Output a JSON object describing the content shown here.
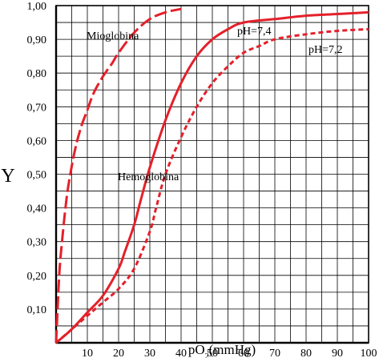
{
  "chart_data": {
    "type": "line",
    "title": "",
    "xlabel": "pO₂(mmHg)",
    "ylabel": "Y",
    "xlim": [
      0,
      100
    ],
    "ylim": [
      0,
      1
    ],
    "x_ticks": [
      "10",
      "20",
      "30",
      "40",
      "50",
      "60",
      "70",
      "80",
      "90",
      "100"
    ],
    "y_ticks": [
      "0,10",
      "0,20",
      "0,30",
      "0,40",
      "0,50",
      "0,60",
      "0,70",
      "0,80",
      "0,90",
      "1,00"
    ],
    "grid": true,
    "colors": {
      "curve": "#e4202a",
      "grid": "#000000"
    },
    "series": [
      {
        "name": "Mioglobina",
        "style": "dashed",
        "x": [
          0,
          1,
          2,
          3,
          4,
          6,
          8,
          10,
          12,
          15,
          18,
          20,
          25,
          30,
          35,
          40
        ],
        "y": [
          0.0,
          0.2,
          0.31,
          0.4,
          0.47,
          0.57,
          0.64,
          0.69,
          0.74,
          0.79,
          0.83,
          0.86,
          0.92,
          0.96,
          0.98,
          0.99
        ]
      },
      {
        "name": "pH=7,4",
        "style": "solid",
        "x": [
          0,
          5,
          10,
          15,
          20,
          22,
          25,
          27,
          30,
          35,
          40,
          45,
          50,
          55,
          60,
          70,
          80,
          90,
          100
        ],
        "y": [
          0.0,
          0.04,
          0.09,
          0.14,
          0.22,
          0.27,
          0.35,
          0.42,
          0.52,
          0.66,
          0.77,
          0.85,
          0.9,
          0.93,
          0.95,
          0.96,
          0.97,
          0.975,
          0.98
        ]
      },
      {
        "name": "pH=7,2",
        "style": "dotted",
        "x": [
          0,
          5,
          10,
          15,
          20,
          25,
          30,
          32,
          35,
          40,
          45,
          50,
          55,
          60,
          65,
          70,
          80,
          90,
          100
        ],
        "y": [
          0.0,
          0.04,
          0.08,
          0.12,
          0.16,
          0.22,
          0.33,
          0.4,
          0.5,
          0.61,
          0.7,
          0.77,
          0.82,
          0.86,
          0.88,
          0.9,
          0.915,
          0.925,
          0.93
        ]
      }
    ],
    "annotations": [
      "Mioglobina",
      "Hemoglobina",
      "pH=7,4",
      "pH=7,2"
    ]
  }
}
